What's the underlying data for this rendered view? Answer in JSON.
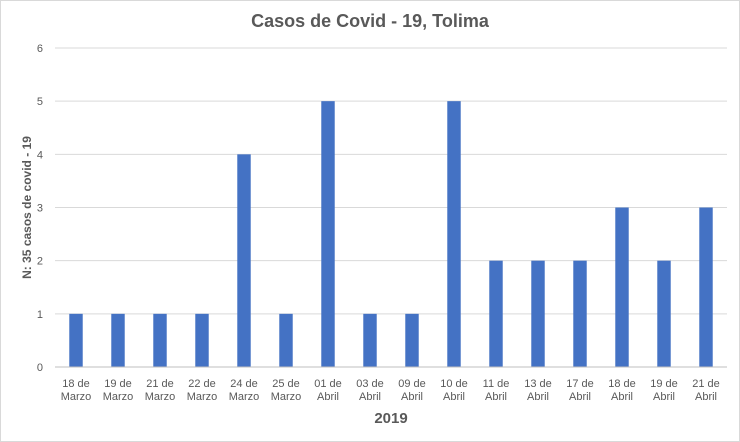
{
  "chart_data": {
    "type": "bar",
    "title": "Casos de Covid - 19, Tolima",
    "xlabel": "2019",
    "ylabel": "N: 35 casos  de covid - 19",
    "ylim": [
      0,
      6
    ],
    "yticks": [
      "0",
      "1",
      "2",
      "3",
      "4",
      "5",
      "6"
    ],
    "grid": true,
    "legend": "none",
    "bar_color": "#4472c4",
    "categories": [
      [
        "18 de",
        "Marzo"
      ],
      [
        "19 de",
        "Marzo"
      ],
      [
        "21 de",
        "Marzo"
      ],
      [
        "22 de",
        "Marzo"
      ],
      [
        "24 de",
        "Marzo"
      ],
      [
        "25 de",
        "Marzo"
      ],
      [
        "01 de",
        "Abril"
      ],
      [
        "03 de",
        "Abril"
      ],
      [
        "09 de",
        "Abril"
      ],
      [
        "10 de",
        "Abril"
      ],
      [
        "11 de",
        "Abril"
      ],
      [
        "13 de",
        "Abril"
      ],
      [
        "17 de",
        "Abril"
      ],
      [
        "18 de",
        "Abril"
      ],
      [
        "19 de",
        "Abril"
      ],
      [
        "21 de",
        "Abril"
      ]
    ],
    "values": [
      1,
      1,
      1,
      1,
      4,
      1,
      5,
      1,
      1,
      5,
      2,
      2,
      2,
      3,
      2,
      3
    ]
  }
}
